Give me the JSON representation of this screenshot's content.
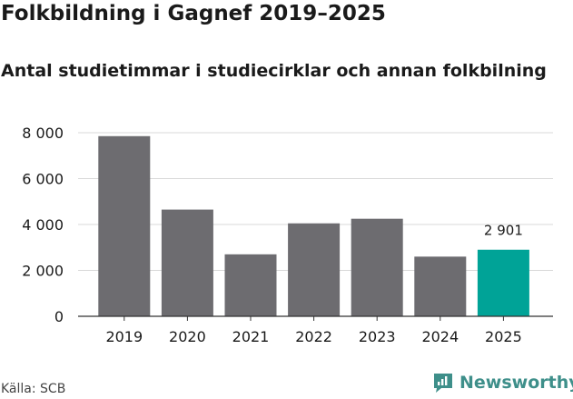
{
  "title": "Folkbildning i Gagnef 2019–2025",
  "subtitle": "Antal studietimmar i studiecirklar och annan folkbilning",
  "source": "Källa: SCB",
  "brand": {
    "name": "Newsworthy",
    "icon": "newsworthy-logo-icon",
    "color": "#3e8f8a"
  },
  "chart_data": {
    "type": "bar",
    "categories": [
      "2019",
      "2020",
      "2021",
      "2022",
      "2023",
      "2024",
      "2025"
    ],
    "values": [
      7850,
      4650,
      2700,
      4050,
      4250,
      2600,
      2901
    ],
    "highlight_index": 6,
    "data_labels": [
      {
        "index": 6,
        "text": "2 901"
      }
    ],
    "y_ticks": [
      {
        "value": 0,
        "label": "0"
      },
      {
        "value": 2000,
        "label": "2 000"
      },
      {
        "value": 4000,
        "label": "4 000"
      },
      {
        "value": 6000,
        "label": "6 000"
      },
      {
        "value": 8000,
        "label": "8 000"
      }
    ],
    "ylim": [
      0,
      8000
    ],
    "grid": true,
    "xlabel": "",
    "ylabel": "",
    "colors": {
      "bar": "#6d6c70",
      "highlight": "#00a397",
      "grid": "#d9d9d9",
      "axis": "#333333"
    }
  }
}
